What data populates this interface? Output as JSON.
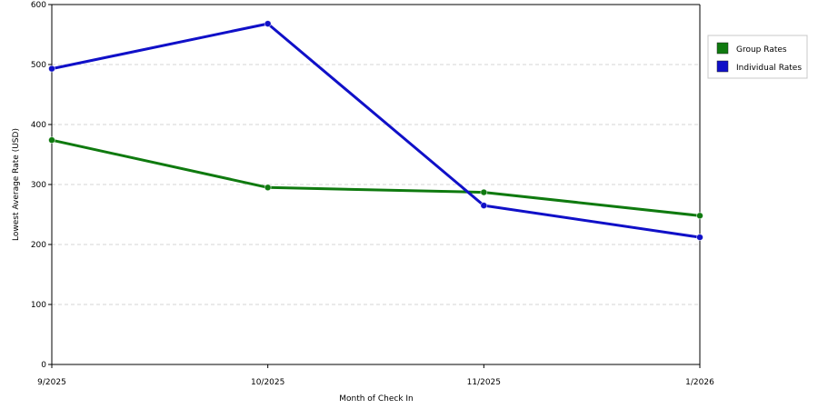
{
  "chart_data": {
    "type": "line",
    "categories": [
      "9/2025",
      "10/2025",
      "11/2025",
      "1/2026"
    ],
    "series": [
      {
        "name": "Group Rates",
        "values": [
          374,
          295,
          287,
          248
        ],
        "color": "#0f7a0f"
      },
      {
        "name": "Individual Rates",
        "values": [
          493,
          568,
          265,
          212
        ],
        "color": "#1010c8"
      }
    ],
    "xlabel": "Month of Check In",
    "ylabel": "Lowest Average Rate (USD)",
    "ylim": [
      0,
      600
    ],
    "yticks": [
      0,
      100,
      200,
      300,
      400,
      500,
      600
    ],
    "grid": "horizontal-dashed",
    "legend_position": "top-right"
  }
}
